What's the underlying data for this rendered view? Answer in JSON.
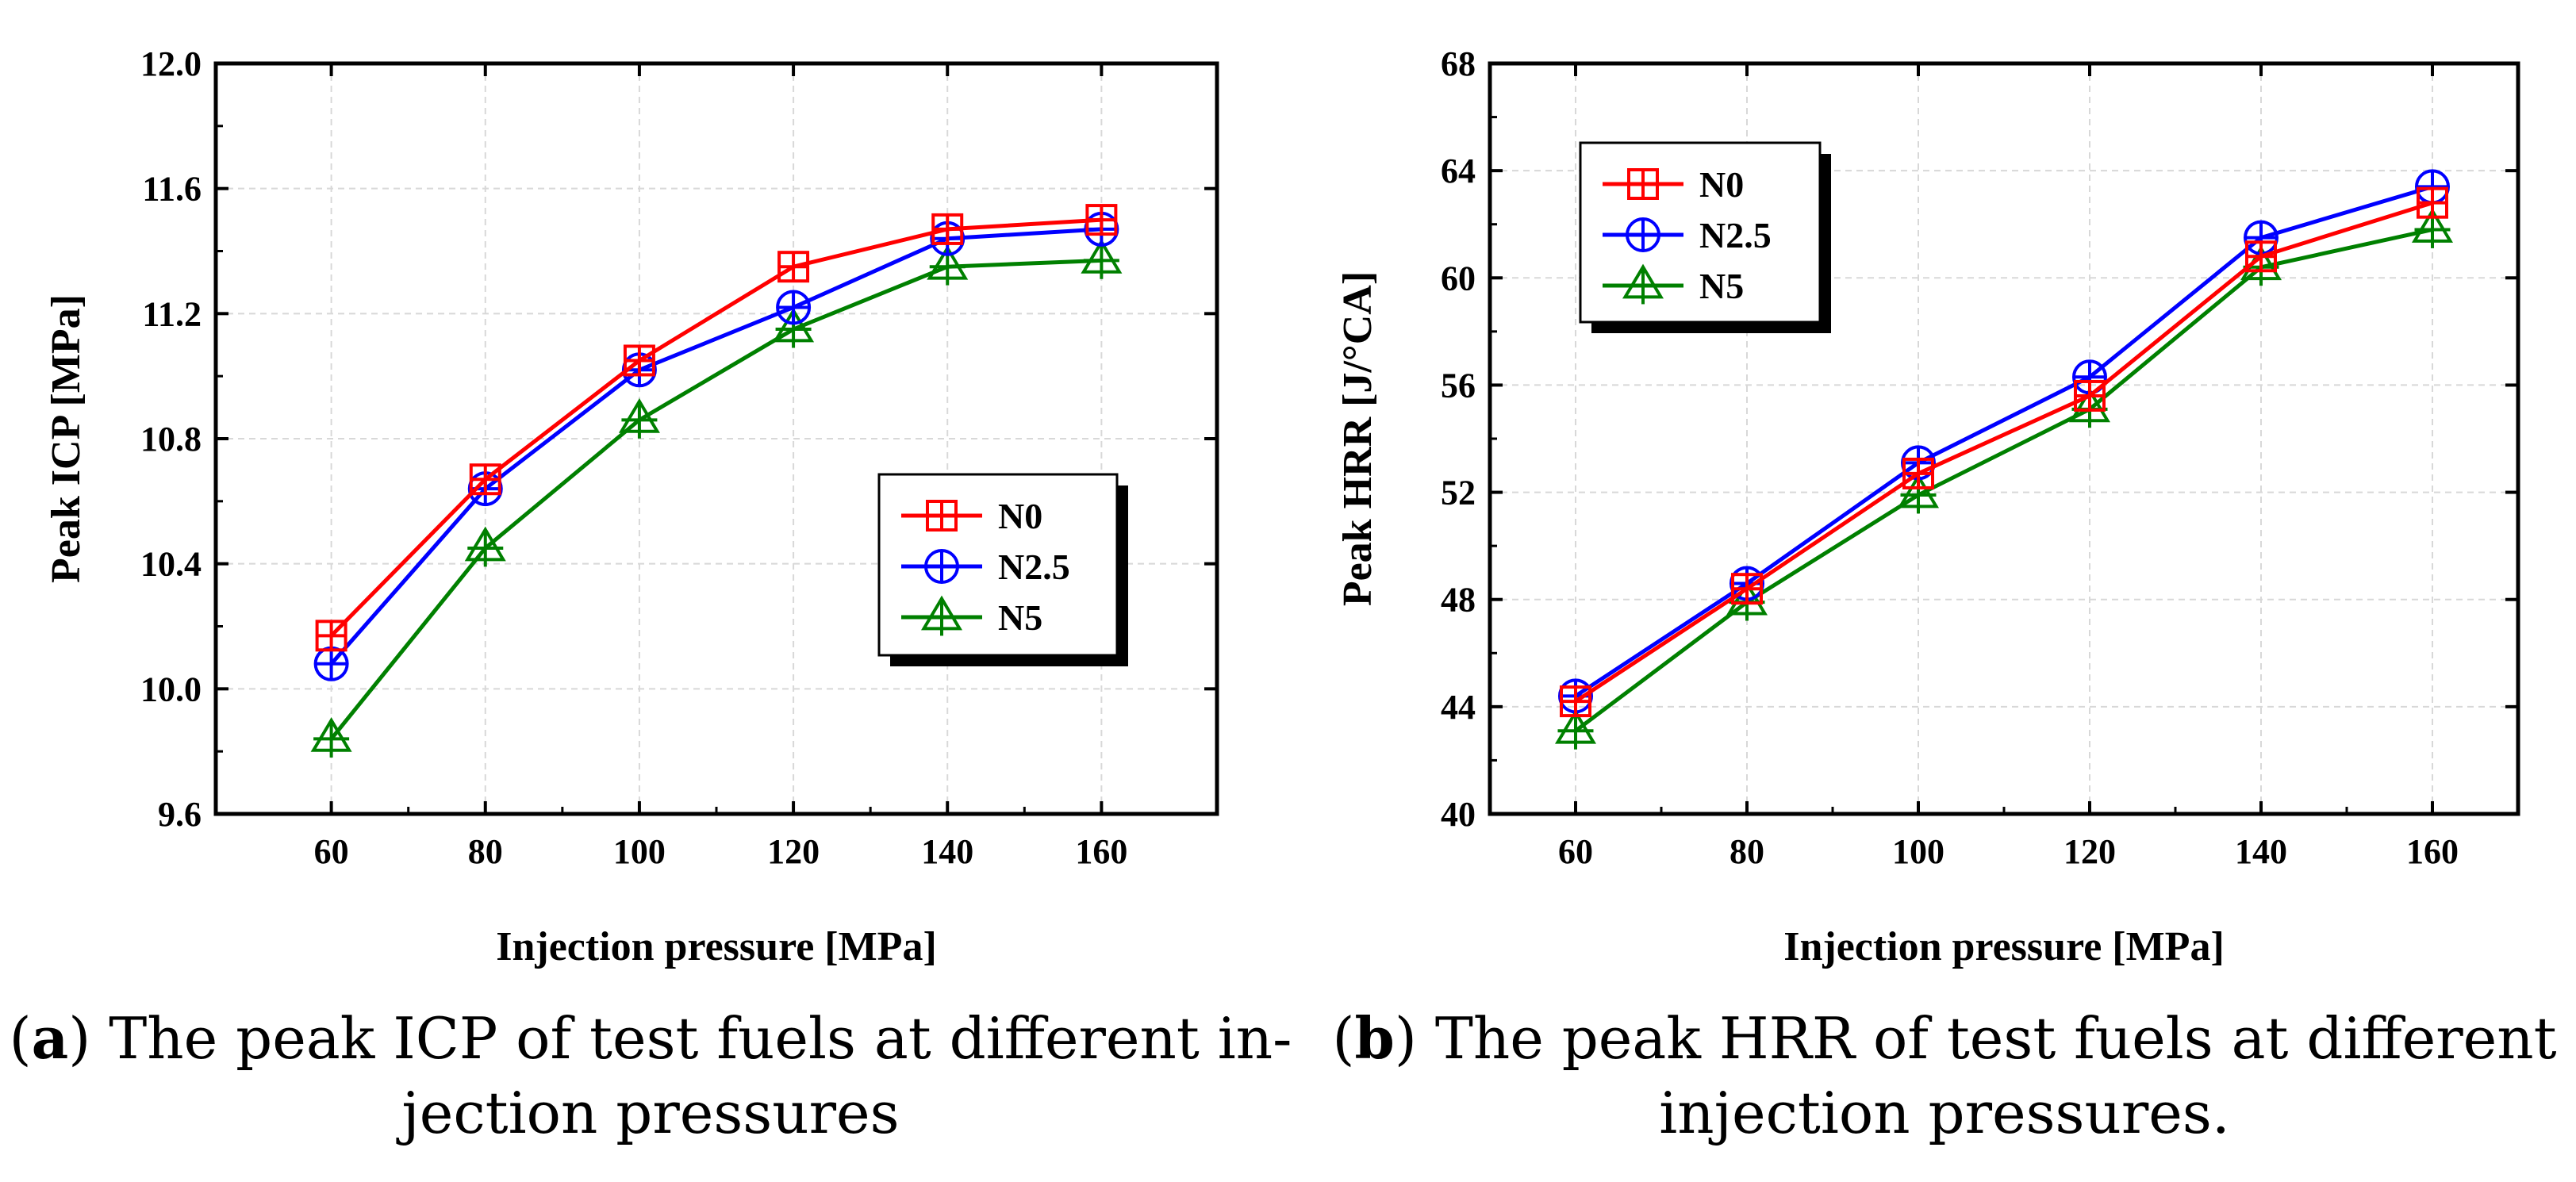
{
  "chart_data": [
    {
      "type": "line",
      "panel_id": "a",
      "caption_tag": "a",
      "caption_text": "The peak ICP of test fuels at different in-jection pressures",
      "caption_lines": [
        "The peak ICP of test fuels at different in-",
        "jection pressures"
      ],
      "xlabel": "Injection pressure [MPa]",
      "ylabel": "Peak ICP [MPa]",
      "x": [
        60,
        80,
        100,
        120,
        140,
        160
      ],
      "xticks": [
        "60",
        "80",
        "100",
        "120",
        "140",
        "160"
      ],
      "xlim": [
        45,
        175
      ],
      "ylim": [
        9.6,
        12.0
      ],
      "yticks": [
        "9.6",
        "10.0",
        "10.4",
        "10.8",
        "11.2",
        "11.6",
        "12.0"
      ],
      "ytick_values": [
        9.6,
        10.0,
        10.4,
        10.8,
        11.2,
        11.6,
        12.0
      ],
      "grid": true,
      "legend_position": "lower-right",
      "series": [
        {
          "name": "N0",
          "color": "#ff0000",
          "marker": "square",
          "values": [
            10.17,
            10.67,
            11.05,
            11.35,
            11.47,
            11.5
          ]
        },
        {
          "name": "N2.5",
          "color": "#0000ff",
          "marker": "circle",
          "values": [
            10.08,
            10.64,
            11.02,
            11.22,
            11.44,
            11.47
          ]
        },
        {
          "name": "N5",
          "color": "#008000",
          "marker": "triangle",
          "values": [
            9.84,
            10.45,
            10.86,
            11.15,
            11.35,
            11.37
          ]
        }
      ]
    },
    {
      "type": "line",
      "panel_id": "b",
      "caption_tag": "b",
      "caption_text": "The peak HRR of test fuels at different injection pressures.",
      "caption_lines": [
        "The peak HRR of test fuels at different",
        "injection pressures."
      ],
      "xlabel": "Injection pressure [MPa]",
      "ylabel": "Peak HRR [J/°CA]",
      "x": [
        60,
        80,
        100,
        120,
        140,
        160
      ],
      "xticks": [
        "60",
        "80",
        "100",
        "120",
        "140",
        "160"
      ],
      "xlim": [
        50,
        170
      ],
      "ylim": [
        40,
        68
      ],
      "yticks": [
        "40",
        "44",
        "48",
        "52",
        "56",
        "60",
        "64",
        "68"
      ],
      "ytick_values": [
        40,
        44,
        48,
        52,
        56,
        60,
        64,
        68
      ],
      "grid": true,
      "legend_position": "top-left",
      "series": [
        {
          "name": "N0",
          "color": "#ff0000",
          "marker": "square",
          "values": [
            44.2,
            48.4,
            52.7,
            55.6,
            60.8,
            62.8
          ]
        },
        {
          "name": "N2.5",
          "color": "#0000ff",
          "marker": "circle",
          "values": [
            44.4,
            48.6,
            53.1,
            56.3,
            61.5,
            63.4
          ]
        },
        {
          "name": "N5",
          "color": "#008000",
          "marker": "triangle",
          "values": [
            43.1,
            47.9,
            51.9,
            55.1,
            60.4,
            61.8
          ]
        }
      ]
    }
  ]
}
